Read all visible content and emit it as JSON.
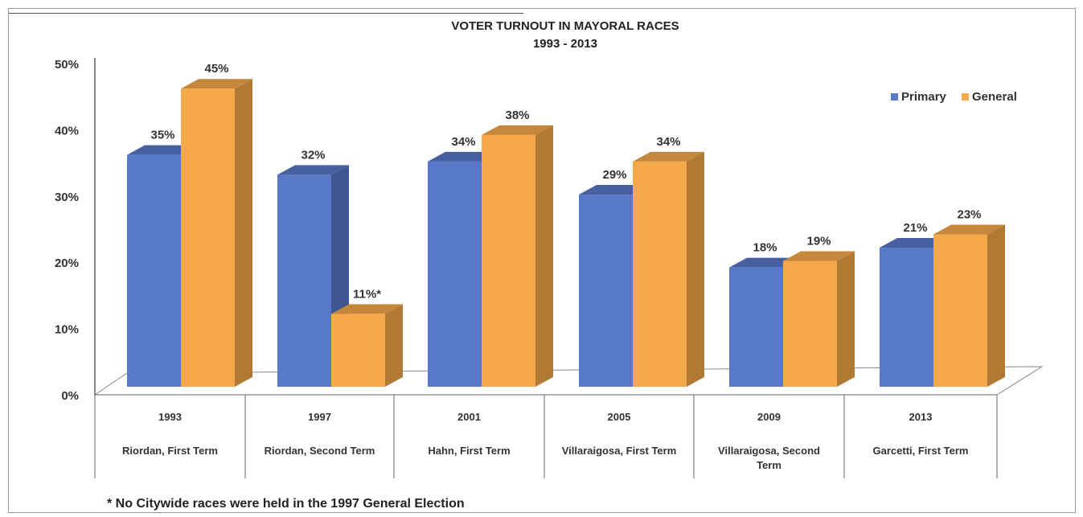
{
  "chart_data": {
    "type": "bar",
    "title": "VOTER TURNOUT IN MAYORAL RACES",
    "subtitle": "1993 - 2013",
    "categories": [
      "1993",
      "1997",
      "2001",
      "2005",
      "2009",
      "2013"
    ],
    "category_names": [
      "Riordan, First Term",
      "Riordan, Second Term",
      "Hahn, First Term",
      "Villaraigosa, First Term",
      "Villaraigosa, Second Term",
      "Garcetti, First Term"
    ],
    "series": [
      {
        "name": "Primary",
        "color": "#5878c8",
        "values": [
          35,
          32,
          34,
          29,
          18,
          21
        ],
        "labels": [
          "35%",
          "32%",
          "34%",
          "29%",
          "18%",
          "21%"
        ]
      },
      {
        "name": "General",
        "color": "#f5a94a",
        "values": [
          45,
          11,
          38,
          34,
          19,
          23
        ],
        "labels": [
          "45%",
          "11%*",
          "38%",
          "34%",
          "19%",
          "23%"
        ]
      }
    ],
    "y_ticks": [
      "0%",
      "10%",
      "20%",
      "30%",
      "40%",
      "50%"
    ],
    "ylim": [
      0,
      50
    ],
    "legend_position": "top-right",
    "grid": false,
    "footnote": "* No Citywide races were held in the 1997 General  Election"
  }
}
